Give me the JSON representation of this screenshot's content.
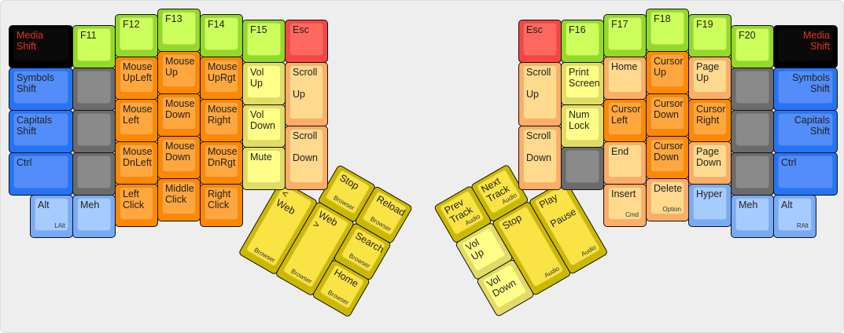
{
  "colors": {
    "black": "#000000",
    "green": "#ccff5c",
    "red": "#ff6860",
    "blue": "#528dfa",
    "grey": "#8a8a8a",
    "lblue": "#a6ccff",
    "orange": "#ffa63d",
    "lorange": "#ffd98e",
    "lyellow": "#ffff88",
    "yellow": "#f9e345",
    "media_text": "#e8301e"
  },
  "left": {
    "keys": [
      {
        "label": "Media\nShift",
        "color": "black"
      },
      {
        "label": "Symbols\nShift",
        "color": "blue"
      },
      {
        "label": "Capitals\nShift",
        "color": "blue"
      },
      {
        "label": "Ctrl",
        "color": "blue"
      },
      {
        "label": "Alt",
        "sub": "LAlt",
        "color": "lblue"
      },
      {
        "label": "F11",
        "color": "green"
      },
      {
        "label": "",
        "color": "grey"
      },
      {
        "label": "",
        "color": "grey"
      },
      {
        "label": "",
        "color": "grey"
      },
      {
        "label": "Meh",
        "color": "lblue"
      },
      {
        "label": "F12",
        "color": "green"
      },
      {
        "label": "Mouse\nUpLeft",
        "color": "orange"
      },
      {
        "label": "Mouse\nLeft",
        "color": "orange"
      },
      {
        "label": "Mouse\nDnLeft",
        "color": "orange"
      },
      {
        "label": "Left\nClick",
        "color": "orange"
      },
      {
        "label": "F13",
        "color": "green"
      },
      {
        "label": "Mouse\nUp",
        "color": "orange"
      },
      {
        "label": "Mouse\nDown",
        "color": "orange"
      },
      {
        "label": "Mouse\nDown",
        "color": "orange"
      },
      {
        "label": "Middle\nClick",
        "color": "orange"
      },
      {
        "label": "F14",
        "color": "green"
      },
      {
        "label": "Mouse\nUpRgt",
        "color": "orange"
      },
      {
        "label": "Mouse\nRight",
        "color": "orange"
      },
      {
        "label": "Mouse\nDnRgt",
        "color": "orange"
      },
      {
        "label": "Right\nClick",
        "color": "orange"
      },
      {
        "label": "F15",
        "color": "green"
      },
      {
        "label": "Vol\nUp",
        "color": "lyellow"
      },
      {
        "label": "Vol\nDown",
        "color": "lyellow"
      },
      {
        "label": "Mute",
        "color": "lyellow"
      },
      {
        "label": "Esc",
        "color": "red"
      },
      {
        "label": "Scroll\n\nUp",
        "color": "lorange"
      },
      {
        "label": "Scroll\n\nDown",
        "color": "lorange"
      }
    ]
  },
  "right": {
    "keys": [
      {
        "label": "Esc",
        "color": "red"
      },
      {
        "label": "Scroll\n\nUp",
        "color": "lorange"
      },
      {
        "label": "Scroll\n\nDown",
        "color": "lorange"
      },
      {
        "label": "F16",
        "color": "green"
      },
      {
        "label": "Print\nScreen",
        "color": "lyellow"
      },
      {
        "label": "Num\nLock",
        "color": "lyellow"
      },
      {
        "label": "",
        "color": "grey"
      },
      {
        "label": "F17",
        "color": "green"
      },
      {
        "label": "Home",
        "color": "lorange"
      },
      {
        "label": "Cursor\nLeft",
        "color": "orange"
      },
      {
        "label": "End",
        "color": "lorange"
      },
      {
        "label": "Insert",
        "sub": "Cmd",
        "color": "lorange"
      },
      {
        "label": "F18",
        "color": "green"
      },
      {
        "label": "Cursor\nUp",
        "color": "orange"
      },
      {
        "label": "Cursor\nDown",
        "color": "orange"
      },
      {
        "label": "Cursor\nDown",
        "color": "orange"
      },
      {
        "label": "Delete",
        "sub": "Option",
        "color": "lorange"
      },
      {
        "label": "F19",
        "color": "green"
      },
      {
        "label": "Page\nUp",
        "color": "lorange"
      },
      {
        "label": "Cursor\nRight",
        "color": "orange"
      },
      {
        "label": "Page\nDown",
        "color": "lorange"
      },
      {
        "label": "Hyper",
        "color": "lblue"
      },
      {
        "label": "F20",
        "color": "green"
      },
      {
        "label": "",
        "color": "grey"
      },
      {
        "label": "",
        "color": "grey"
      },
      {
        "label": "",
        "color": "grey"
      },
      {
        "label": "Meh",
        "color": "lblue"
      },
      {
        "label": "Media\nShift",
        "color": "black"
      },
      {
        "label": "Symbols\nShift",
        "color": "blue"
      },
      {
        "label": "Capitals\nShift",
        "color": "blue"
      },
      {
        "label": "Ctrl",
        "color": "blue"
      },
      {
        "label": "Alt",
        "sub": "RAlt",
        "color": "lblue"
      }
    ]
  },
  "left_thumb": {
    "keys": [
      {
        "label": "Stop",
        "sub": "Browser",
        "color": "yellow"
      },
      {
        "label": "Reload",
        "sub": "Browser",
        "color": "yellow"
      },
      {
        "label": "< Web",
        "sub": "Browser",
        "color": "yellow"
      },
      {
        "label": "Web >",
        "sub": "Browser",
        "color": "yellow"
      },
      {
        "label": "Search",
        "sub": "Browser",
        "color": "yellow"
      },
      {
        "label": "Home",
        "sub": "Browser",
        "color": "yellow"
      }
    ]
  },
  "right_thumb": {
    "keys": [
      {
        "label": "Prev\nTrack",
        "sub": "Audio",
        "color": "yellow"
      },
      {
        "label": "Next\nTrack",
        "sub": "Audio",
        "color": "yellow"
      },
      {
        "label": "Vol\nUp",
        "color": "lyellow"
      },
      {
        "label": "Stop",
        "sub": "Audio",
        "color": "yellow"
      },
      {
        "label": "Play\n\nPause",
        "sub": "Audio",
        "color": "yellow"
      },
      {
        "label": "Vol\nDown",
        "color": "lyellow"
      }
    ]
  }
}
